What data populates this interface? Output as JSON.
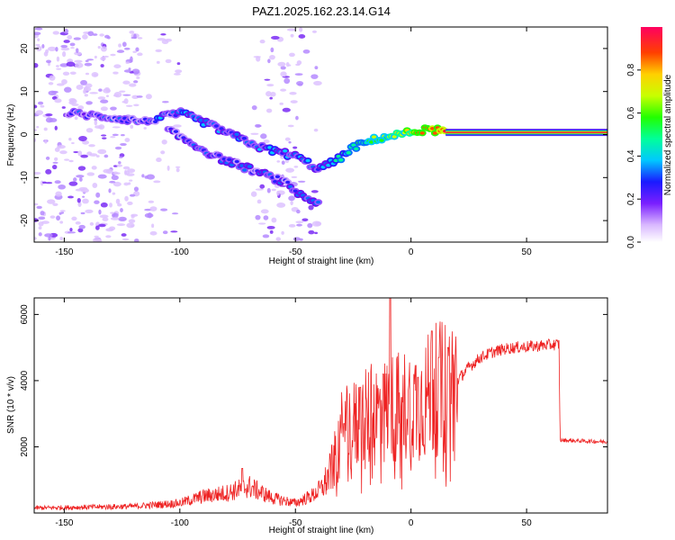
{
  "title": "PAZ1.2025.162.23.14.G14",
  "colors": {
    "snr_line": "#ee2222",
    "axis": "#000000"
  },
  "chart_data": [
    {
      "type": "heatmap",
      "xlabel": "Height of straight line (km)",
      "ylabel": "Frequency (Hz)",
      "xlim": [
        -163,
        85
      ],
      "ylim": [
        -25,
        25
      ],
      "xticks": [
        -150,
        -100,
        -50,
        0,
        50
      ],
      "yticks": [
        -20,
        -10,
        0,
        10,
        20
      ],
      "colorbar": {
        "label": "Normalized spectral amplitude",
        "range": [
          0,
          1
        ],
        "ticks": [
          0.0,
          0.2,
          0.4,
          0.6,
          0.8
        ],
        "colormap": "rainbow"
      },
      "tracks": [
        {
          "name": "upper",
          "points": [
            [
              -148,
              5
            ],
            [
              -130,
              4
            ],
            [
              -115,
              3
            ],
            [
              -100,
              5
            ],
            [
              -90,
              3
            ],
            [
              -78,
              0
            ],
            [
              -65,
              -3
            ],
            [
              -50,
              -5
            ],
            [
              -40,
              -8
            ],
            [
              -32,
              -6
            ],
            [
              -25,
              -3
            ],
            [
              -15,
              -1
            ],
            [
              -5,
              0
            ],
            [
              5,
              1
            ],
            [
              12,
              1
            ],
            [
              15,
              0.5
            ],
            [
              85,
              0.5
            ]
          ]
        },
        {
          "name": "lower",
          "points": [
            [
              -105,
              1
            ],
            [
              -95,
              -2
            ],
            [
              -85,
              -5
            ],
            [
              -70,
              -8
            ],
            [
              -55,
              -11
            ],
            [
              -48,
              -14
            ],
            [
              -40,
              -16
            ]
          ]
        }
      ]
    },
    {
      "type": "line",
      "xlabel": "Height of straight line (km)",
      "ylabel": "SNR (10 * v/v)",
      "xlim": [
        -163,
        85
      ],
      "ylim": [
        0,
        6500
      ],
      "xticks": [
        -150,
        -100,
        -50,
        0,
        50
      ],
      "yticks": [
        2000,
        4000,
        6000
      ],
      "series": [
        {
          "envelope": [
            [
              -163,
              150
            ],
            [
              -120,
              200
            ],
            [
              -100,
              300
            ],
            [
              -90,
              500
            ],
            [
              -80,
              600
            ],
            [
              -70,
              800
            ],
            [
              -60,
              450
            ],
            [
              -50,
              300
            ],
            [
              -42,
              550
            ],
            [
              -38,
              800
            ],
            [
              -35,
              1200
            ],
            [
              -32,
              1800
            ],
            [
              -30,
              2400
            ],
            [
              -25,
              2600
            ],
            [
              -20,
              2800
            ],
            [
              -15,
              3000
            ],
            [
              -10,
              3100
            ],
            [
              -5,
              3200
            ],
            [
              0,
              3300
            ],
            [
              5,
              3400
            ],
            [
              10,
              3700
            ],
            [
              15,
              3800
            ],
            [
              20,
              4000
            ],
            [
              25,
              4400
            ],
            [
              30,
              4700
            ],
            [
              35,
              4850
            ],
            [
              40,
              4950
            ],
            [
              45,
              5000
            ],
            [
              55,
              5050
            ],
            [
              64,
              5100
            ],
            [
              64.5,
              2200
            ],
            [
              85,
              2150
            ]
          ],
          "spikes": [
            [
              -73,
              1350
            ],
            [
              -29,
              2700
            ],
            [
              -22,
              3800
            ],
            [
              -12,
              4200
            ],
            [
              -9,
              6500
            ],
            [
              -4,
              3500
            ],
            [
              3,
              4100
            ],
            [
              9,
              5500
            ],
            [
              12,
              4700
            ],
            [
              16,
              5000
            ]
          ]
        }
      ]
    }
  ]
}
